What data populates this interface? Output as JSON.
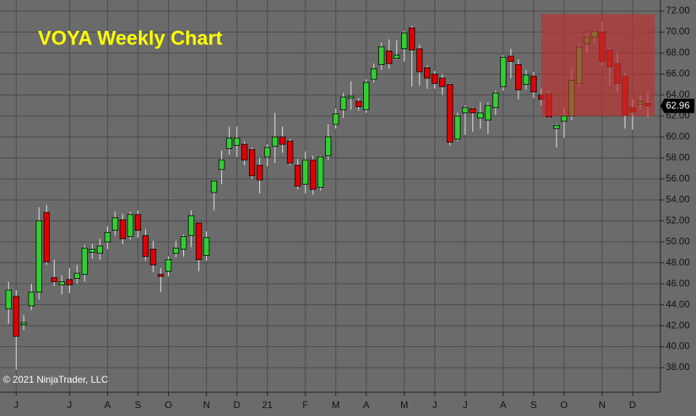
{
  "chart_data": {
    "type": "candlestick",
    "title": "VOYA Weekly Chart",
    "copyright": "© 2021 NinjaTrader, LLC",
    "categories": [
      null,
      "J",
      null,
      null,
      null,
      null,
      null,
      null,
      "J",
      null,
      null,
      null,
      null,
      "A",
      null,
      null,
      null,
      "S",
      null,
      null,
      null,
      "O",
      null,
      null,
      null,
      null,
      "N",
      null,
      null,
      null,
      "D",
      null,
      null,
      null,
      "21",
      null,
      null,
      null,
      null,
      "F",
      null,
      null,
      null,
      "M",
      null,
      null,
      null,
      "A",
      null,
      null,
      null,
      null,
      "M",
      null,
      null,
      null,
      "J",
      null,
      null,
      null,
      "J",
      null,
      null,
      null,
      null,
      "A",
      null,
      null,
      null,
      "S",
      null,
      null,
      null,
      "O",
      null,
      null,
      null,
      null,
      "N",
      null,
      null,
      null,
      "D",
      null,
      null
    ],
    "open": [
      43.6,
      44.8,
      42.1,
      43.9,
      45.2,
      52.8,
      46.6,
      45.9,
      46.4,
      46.5,
      46.9,
      49.0,
      48.9,
      50.0,
      51.1,
      52.1,
      50.5,
      52.6,
      50.6,
      49.3,
      46.9,
      47.2,
      48.9,
      49.3,
      50.6,
      51.8,
      48.7,
      54.7,
      56.9,
      58.9,
      59.2,
      59.3,
      58.8,
      57.3,
      58.1,
      59.1,
      60.0,
      59.6,
      57.3,
      55.5,
      57.8,
      55.2,
      58.2,
      61.2,
      62.6,
      63.7,
      63.4,
      62.6,
      65.5,
      66.9,
      68.2,
      67.5,
      68.4,
      70.4,
      68.4,
      66.6,
      66.0,
      65.6,
      65.0,
      59.8,
      62.3,
      62.7,
      61.8,
      61.6,
      62.8,
      64.8,
      67.7,
      66.9,
      65.0,
      65.8,
      64.0,
      64.1,
      60.8,
      61.5,
      62.0,
      65.1,
      68.9,
      69.5,
      70.0,
      68.3,
      67.0,
      65.8,
      62.8,
      63.1,
      63.2
    ],
    "high": [
      46.2,
      45.4,
      43.0,
      46.0,
      53.3,
      53.5,
      48.3,
      46.8,
      47.5,
      47.8,
      49.7,
      49.8,
      50.3,
      51.5,
      52.9,
      52.7,
      52.9,
      53.0,
      51.2,
      50.1,
      47.5,
      48.6,
      50.1,
      50.7,
      53.0,
      51.8,
      51.0,
      55.9,
      58.7,
      61.0,
      61.0,
      59.6,
      59.0,
      58.0,
      59.3,
      62.3,
      61.0,
      59.8,
      57.9,
      58.6,
      58.2,
      58.2,
      61.2,
      62.7,
      64.2,
      65.3,
      63.7,
      65.5,
      67.0,
      69.0,
      69.3,
      69.2,
      70.1,
      70.6,
      68.8,
      66.8,
      66.3,
      66.0,
      65.1,
      62.3,
      63.0,
      62.8,
      63.3,
      63.3,
      64.4,
      67.8,
      68.4,
      67.4,
      66.4,
      66.2,
      64.6,
      64.4,
      61.2,
      62.8,
      66.5,
      68.9,
      69.8,
      70.3,
      71.0,
      68.5,
      68.0,
      66.1,
      63.6,
      64.0,
      64.3
    ],
    "low": [
      42.2,
      37.8,
      41.6,
      43.5,
      44.5,
      47.8,
      45.8,
      45.0,
      45.1,
      46.0,
      46.2,
      48.4,
      48.3,
      49.3,
      50.6,
      49.8,
      50.2,
      50.4,
      48.2,
      47.1,
      45.2,
      46.7,
      48.5,
      48.6,
      49.5,
      47.2,
      48.2,
      53.0,
      55.5,
      58.3,
      58.1,
      57.3,
      56.0,
      54.6,
      57.2,
      57.5,
      58.5,
      57.3,
      55.0,
      54.6,
      54.5,
      54.9,
      57.8,
      60.8,
      61.8,
      62.6,
      62.5,
      62.3,
      65.2,
      66.4,
      66.5,
      67.4,
      67.2,
      64.8,
      64.9,
      64.6,
      64.6,
      64.0,
      59.2,
      59.6,
      60.2,
      60.5,
      60.8,
      60.3,
      62.1,
      64.4,
      65.6,
      63.6,
      64.5,
      63.7,
      63.0,
      61.8,
      59.0,
      59.9,
      61.6,
      64.8,
      68.0,
      69.0,
      66.8,
      64.9,
      64.3,
      60.8,
      60.7,
      62.6,
      61.9
    ],
    "close": [
      45.4,
      41.0,
      42.3,
      45.2,
      52.0,
      48.1,
      46.2,
      46.2,
      45.9,
      47.0,
      49.4,
      49.3,
      49.6,
      50.9,
      52.3,
      50.3,
      52.6,
      51.1,
      48.6,
      47.8,
      46.7,
      48.3,
      49.4,
      50.5,
      52.5,
      48.3,
      50.4,
      55.8,
      57.8,
      59.9,
      59.9,
      57.8,
      56.3,
      55.9,
      59.0,
      60.0,
      59.3,
      57.5,
      55.3,
      57.8,
      55.0,
      58.1,
      60.0,
      62.2,
      63.8,
      63.9,
      62.9,
      65.2,
      66.5,
      68.6,
      67.0,
      67.8,
      69.9,
      68.3,
      66.2,
      65.6,
      65.1,
      64.8,
      59.5,
      62.0,
      62.8,
      62.3,
      62.3,
      63.0,
      64.2,
      67.6,
      67.2,
      64.5,
      65.9,
      64.3,
      63.6,
      61.9,
      61.1,
      62.0,
      65.4,
      68.6,
      69.5,
      70.1,
      67.2,
      66.7,
      65.1,
      62.1,
      62.4,
      63.4,
      62.96
    ],
    "up_color": "#32cd32",
    "down_color": "#e00000",
    "highlight": {
      "color": "#c0302e",
      "x_from": 70.5,
      "x_to": 85.4,
      "ylim": [
        62.0,
        71.7
      ]
    },
    "ylim": [
      35.66,
      73.06
    ],
    "yticks": [
      {
        "value": 38,
        "label": "38.00"
      },
      {
        "value": 40,
        "label": "40.00"
      },
      {
        "value": 42,
        "label": "42.00"
      },
      {
        "value": 44,
        "label": "44.00"
      },
      {
        "value": 46,
        "label": "46.00"
      },
      {
        "value": 48,
        "label": "48.00"
      },
      {
        "value": 50,
        "label": "50.00"
      },
      {
        "value": 52,
        "label": "52.00"
      },
      {
        "value": 54,
        "label": "54.00"
      },
      {
        "value": 56,
        "label": "56.00"
      },
      {
        "value": 58,
        "label": "58.00"
      },
      {
        "value": 60,
        "label": "60.00"
      },
      {
        "value": 62,
        "label": "62.00"
      },
      {
        "value": 64,
        "label": "64.00"
      },
      {
        "value": 66,
        "label": "66.00"
      },
      {
        "value": 68,
        "label": "68.00"
      },
      {
        "value": 70,
        "label": "70.00"
      },
      {
        "value": 72,
        "label": "72.00"
      }
    ],
    "grid": true
  }
}
